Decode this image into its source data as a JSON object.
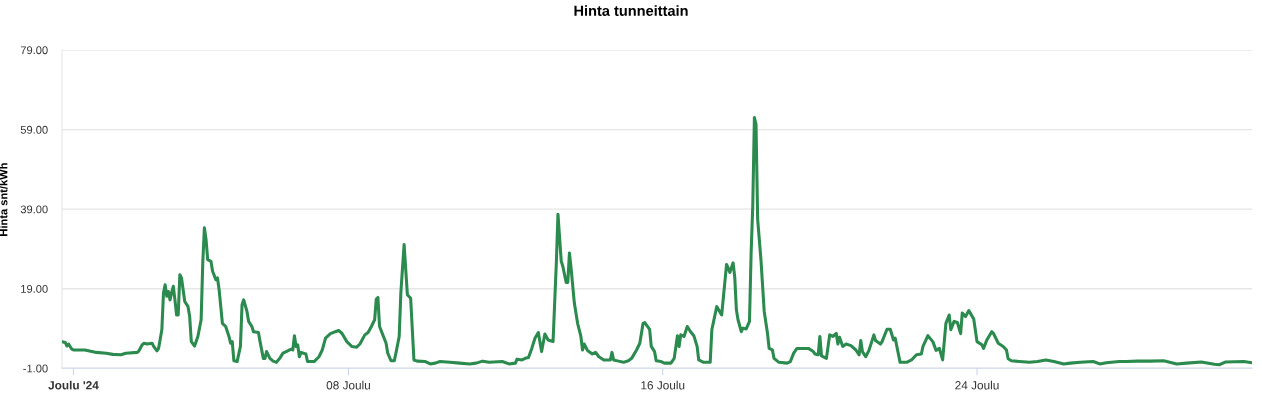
{
  "chart_data": {
    "type": "line",
    "title": "Hinta tunneittain",
    "ylabel": "Hinta snt/kWh",
    "color": "#2b8a4e",
    "line_style": "solid",
    "grid": "y",
    "xlim": [
      "2024-11-30T17:00",
      "2024-12-31T00:00"
    ],
    "xticks": [
      {
        "value": "2024-12-01",
        "label": "Joulu '24"
      },
      {
        "value": "2024-12-08",
        "label": "08 Joulu"
      },
      {
        "value": "2024-12-16",
        "label": "16 Joulu"
      },
      {
        "value": "2024-12-24",
        "label": "24 Joulu"
      }
    ],
    "ylim": [
      -1,
      79
    ],
    "yticks": [
      {
        "value": -1,
        "label": "-1.00"
      },
      {
        "value": 19,
        "label": "19.00"
      },
      {
        "value": 39,
        "label": "39.00"
      },
      {
        "value": 59,
        "label": "59.00"
      },
      {
        "value": 79,
        "label": "79.00"
      }
    ],
    "x": [
      "2024-11-30T17:00",
      "2024-11-30T19:00",
      "2024-11-30T20:00",
      "2024-11-30T21:00",
      "2024-11-30T23:00",
      "2024-12-01T00:00",
      "2024-12-01T07:00",
      "2024-12-01T14:00",
      "2024-12-01T20:00",
      "2024-12-02T00:00",
      "2024-12-02T05:00",
      "2024-12-02T08:00",
      "2024-12-02T15:00",
      "2024-12-02T16:00",
      "2024-12-02T18:00",
      "2024-12-02T19:00",
      "2024-12-02T21:00",
      "2024-12-03T00:00",
      "2024-12-03T01:00",
      "2024-12-03T03:00",
      "2024-12-03T04:00",
      "2024-12-03T06:00",
      "2024-12-03T07:00",
      "2024-12-03T08:00",
      "2024-12-03T09:00",
      "2024-12-03T10:00",
      "2024-12-03T11:00",
      "2024-12-03T12:00",
      "2024-12-03T13:00",
      "2024-12-03T14:00",
      "2024-12-03T15:00",
      "2024-12-03T16:00",
      "2024-12-03T17:00",
      "2024-12-03T18:00",
      "2024-12-03T20:00",
      "2024-12-03T22:00",
      "2024-12-03T23:00",
      "2024-12-04T00:00",
      "2024-12-04T02:00",
      "2024-12-04T04:00",
      "2024-12-04T06:00",
      "2024-12-04T07:00",
      "2024-12-04T08:00",
      "2024-12-04T09:00",
      "2024-12-04T10:00",
      "2024-12-04T12:00",
      "2024-12-04T13:00",
      "2024-12-04T15:00",
      "2024-12-04T16:00",
      "2024-12-04T17:00",
      "2024-12-04T19:00",
      "2024-12-04T21:00",
      "2024-12-04T23:00",
      "2024-12-05T00:00",
      "2024-12-05T01:00",
      "2024-12-05T02:00",
      "2024-12-05T04:00",
      "2024-12-05T06:00",
      "2024-12-05T07:00",
      "2024-12-05T08:00",
      "2024-12-05T10:00",
      "2024-12-05T11:00",
      "2024-12-05T13:00",
      "2024-12-05T14:00",
      "2024-12-05T17:00",
      "2024-12-05T18:00",
      "2024-12-05T20:00",
      "2024-12-05T21:00",
      "2024-12-05T22:00",
      "2024-12-06T00:00",
      "2024-12-06T02:00",
      "2024-12-06T04:00",
      "2024-12-06T06:00",
      "2024-12-06T08:00",
      "2024-12-06T10:00",
      "2024-12-06T13:00",
      "2024-12-06T14:00",
      "2024-12-06T15:00",
      "2024-12-06T16:00",
      "2024-12-06T17:00",
      "2024-12-06T18:00",
      "2024-12-06T19:00",
      "2024-12-06T22:00",
      "2024-12-06T23:00",
      "2024-12-07T03:00",
      "2024-12-07T06:00",
      "2024-12-07T08:00",
      "2024-12-07T10:00",
      "2024-12-07T13:00",
      "2024-12-07T16:00",
      "2024-12-07T18:00",
      "2024-12-07T20:00",
      "2024-12-07T23:00",
      "2024-12-08T02:00",
      "2024-12-08T05:00",
      "2024-12-08T07:00",
      "2024-12-08T10:00",
      "2024-12-08T12:00",
      "2024-12-08T14:00",
      "2024-12-08T16:00",
      "2024-12-08T17:00",
      "2024-12-08T18:00",
      "2024-12-08T19:00",
      "2024-12-08T21:00",
      "2024-12-08T23:00",
      "2024-12-09T00:00",
      "2024-12-09T02:00",
      "2024-12-09T04:00",
      "2024-12-09T05:00",
      "2024-12-09T07:00",
      "2024-12-09T08:00",
      "2024-12-09T10:00",
      "2024-12-09T12:00",
      "2024-12-09T14:00",
      "2024-12-09T16:00",
      "2024-12-09T18:00",
      "2024-12-09T23:00",
      "2024-12-10T02:00",
      "2024-12-10T05:00",
      "2024-12-10T08:00",
      "2024-12-10T14:00",
      "2024-12-10T20:00",
      "2024-12-11T02:00",
      "2024-12-11T06:00",
      "2024-12-11T10:00",
      "2024-12-11T14:00",
      "2024-12-11T22:00",
      "2024-12-12T02:00",
      "2024-12-12T06:00",
      "2024-12-12T07:00",
      "2024-12-12T10:00",
      "2024-12-12T12:00",
      "2024-12-12T14:00",
      "2024-12-12T16:00",
      "2024-12-12T18:00",
      "2024-12-12T20:00",
      "2024-12-12T22:00",
      "2024-12-13T00:00",
      "2024-12-13T02:00",
      "2024-12-13T05:00",
      "2024-12-13T07:00",
      "2024-12-13T08:00",
      "2024-12-13T10:00",
      "2024-12-13T11:00",
      "2024-12-13T13:00",
      "2024-12-13T14:00",
      "2024-12-13T15:00",
      "2024-12-13T16:00",
      "2024-12-13T18:00",
      "2024-12-13T20:00",
      "2024-12-13T22:00",
      "2024-12-13T23:00",
      "2024-12-14T00:00",
      "2024-12-14T02:00",
      "2024-12-14T05:00",
      "2024-12-14T07:00",
      "2024-12-14T09:00",
      "2024-12-14T12:00",
      "2024-12-14T16:00",
      "2024-12-14T17:00",
      "2024-12-14T18:00",
      "2024-12-14T21:00",
      "2024-12-15T00:00",
      "2024-12-15T03:00",
      "2024-12-15T05:00",
      "2024-12-15T08:00",
      "2024-12-15T10:00",
      "2024-12-15T12:00",
      "2024-12-15T13:00",
      "2024-12-15T16:00",
      "2024-12-15T17:00",
      "2024-12-15T19:00",
      "2024-12-15T20:00",
      "2024-12-15T23:00",
      "2024-12-16T01:00",
      "2024-12-16T05:00",
      "2024-12-16T07:00",
      "2024-12-16T09:00",
      "2024-12-16T10:00",
      "2024-12-16T11:00",
      "2024-12-16T13:00",
      "2024-12-16T15:00",
      "2024-12-16T17:00",
      "2024-12-16T19:00",
      "2024-12-16T21:00",
      "2024-12-16T22:00",
      "2024-12-17T01:00",
      "2024-12-17T05:00",
      "2024-12-17T06:00",
      "2024-12-17T09:00",
      "2024-12-17T12:00",
      "2024-12-17T13:00",
      "2024-12-17T15:00",
      "2024-12-17T16:00",
      "2024-12-17T17:00",
      "2024-12-17T19:00",
      "2024-12-17T20:00",
      "2024-12-17T21:00",
      "2024-12-17T22:00",
      "2024-12-18T00:00",
      "2024-12-18T01:00",
      "2024-12-18T03:00",
      "2024-12-18T05:00",
      "2024-12-18T06:00",
      "2024-12-18T07:00",
      "2024-12-18T08:00",
      "2024-12-18T09:00",
      "2024-12-18T10:00",
      "2024-12-18T12:00",
      "2024-12-18T14:00",
      "2024-12-18T16:00",
      "2024-12-18T17:00",
      "2024-12-18T19:00",
      "2024-12-18T20:00",
      "2024-12-18T23:00",
      "2024-12-19T04:00",
      "2024-12-19T06:00",
      "2024-12-19T08:00",
      "2024-12-19T10:00",
      "2024-12-19T14:00",
      "2024-12-19T17:00",
      "2024-12-19T20:00",
      "2024-12-19T21:00",
      "2024-12-19T23:00",
      "2024-12-20T00:00",
      "2024-12-20T01:00",
      "2024-12-20T04:00",
      "2024-12-20T06:00",
      "2024-12-20T08:00",
      "2024-12-20T10:00",
      "2024-12-20T11:00",
      "2024-12-20T12:00",
      "2024-12-20T14:00",
      "2024-12-20T16:00",
      "2024-12-20T19:00",
      "2024-12-20T22:00",
      "2024-12-21T00:00",
      "2024-12-21T01:00",
      "2024-12-21T02:00",
      "2024-12-21T04:00",
      "2024-12-21T06:00",
      "2024-12-21T09:00",
      "2024-12-21T10:00",
      "2024-12-21T13:00",
      "2024-12-21T14:00",
      "2024-12-21T17:00",
      "2024-12-21T19:00",
      "2024-12-21T21:00",
      "2024-12-21T22:00",
      "2024-12-22T01:00",
      "2024-12-22T05:00",
      "2024-12-22T08:00",
      "2024-12-22T11:00",
      "2024-12-22T14:00",
      "2024-12-22T15:00",
      "2024-12-22T18:00",
      "2024-12-22T21:00",
      "2024-12-22T23:00",
      "2024-12-23T01:00",
      "2024-12-23T03:00",
      "2024-12-23T05:00",
      "2024-12-23T07:00",
      "2024-12-23T08:00",
      "2024-12-23T10:00",
      "2024-12-23T12:00",
      "2024-12-23T14:00",
      "2024-12-23T15:00",
      "2024-12-23T17:00",
      "2024-12-23T19:00",
      "2024-12-23T22:00",
      "2024-12-24T00:00",
      "2024-12-24T03:00",
      "2024-12-24T04:00",
      "2024-12-24T06:00",
      "2024-12-24T09:00",
      "2024-12-24T10:00",
      "2024-12-24T13:00",
      "2024-12-24T16:00",
      "2024-12-24T18:00",
      "2024-12-24T19:00",
      "2024-12-24T21:00",
      "2024-12-25T02:00",
      "2024-12-25T08:00",
      "2024-12-25T13:00",
      "2024-12-25T18:00",
      "2024-12-25T23:00",
      "2024-12-26T05:00",
      "2024-12-26T09:00",
      "2024-12-26T15:00",
      "2024-12-26T23:00",
      "2024-12-27T03:00",
      "2024-12-27T07:00",
      "2024-12-27T15:00",
      "2024-12-27T19:00",
      "2024-12-28T02:00",
      "2024-12-28T10:00",
      "2024-12-28T18:00",
      "2024-12-29T02:00",
      "2024-12-29T08:00",
      "2024-12-29T17:00",
      "2024-12-30T01:00",
      "2024-12-30T04:00",
      "2024-12-30T08:00",
      "2024-12-30T19:00",
      "2024-12-31T00:00"
    ],
    "values": [
      5.7,
      5.5,
      4.6,
      5.1,
      3.8,
      3.6,
      3.6,
      3.0,
      2.8,
      2.5,
      2.4,
      2.8,
      3.0,
      3.4,
      4.9,
      5.3,
      5.1,
      5.3,
      4.5,
      3.4,
      4.0,
      8.7,
      17.9,
      20.0,
      17.1,
      18.3,
      16.2,
      18.1,
      19.6,
      16.2,
      12.4,
      12.4,
      22.5,
      21.7,
      15.8,
      14.5,
      12.0,
      5.7,
      4.6,
      7.0,
      11.2,
      25.5,
      34.3,
      31.4,
      26.3,
      25.9,
      23.4,
      21.3,
      21.7,
      18.7,
      10.3,
      9.5,
      7.0,
      5.3,
      5.7,
      0.9,
      0.7,
      4.5,
      15.0,
      16.2,
      13.3,
      10.8,
      9.5,
      8.2,
      8.0,
      5.7,
      1.5,
      1.5,
      3.2,
      1.5,
      0.8,
      0.5,
      1.5,
      2.8,
      3.2,
      3.8,
      3.6,
      7.2,
      4.5,
      4.9,
      1.9,
      3.0,
      2.6,
      0.7,
      0.7,
      1.9,
      3.6,
      6.6,
      7.7,
      8.2,
      8.5,
      7.8,
      5.7,
      4.5,
      4.3,
      5.1,
      7.4,
      8.0,
      9.5,
      11.2,
      16.4,
      16.8,
      9.5,
      7.4,
      5.3,
      2.8,
      0.9,
      0.9,
      2.8,
      7.0,
      17.9,
      30.1,
      17.5,
      16.6,
      1.1,
      0.8,
      0.7,
      0.1,
      0.3,
      0.7,
      0.5,
      0.3,
      0.1,
      0.3,
      0.8,
      0.5,
      0.7,
      0.1,
      0.3,
      1.3,
      1.1,
      1.5,
      1.7,
      4.0,
      6.6,
      8.0,
      3.2,
      7.6,
      6.1,
      5.7,
      25.5,
      37.7,
      25.9,
      24.6,
      20.6,
      20.6,
      28.0,
      24.2,
      15.4,
      10.3,
      7.0,
      3.6,
      5.1,
      3.5,
      2.6,
      3.0,
      1.9,
      1.1,
      1.1,
      3.0,
      1.1,
      0.8,
      0.5,
      0.9,
      1.5,
      3.6,
      5.3,
      10.3,
      10.5,
      8.8,
      4.5,
      3.2,
      0.9,
      0.7,
      0.3,
      0.3,
      1.5,
      7.2,
      4.5,
      7.4,
      7.0,
      9.5,
      8.2,
      7.2,
      4.5,
      1.1,
      0.5,
      0.5,
      8.7,
      14.5,
      12.4,
      16.6,
      25.1,
      24.2,
      23.1,
      25.5,
      21.9,
      13.7,
      11.2,
      8.2,
      9.1,
      8.9,
      10.8,
      28.0,
      39.8,
      62.0,
      60.3,
      36.4,
      26.3,
      13.3,
      7.8,
      4.0,
      3.6,
      1.5,
      0.5,
      0.3,
      0.7,
      2.8,
      4.0,
      4.0,
      4.0,
      3.2,
      2.6,
      2.4,
      7.0,
      2.1,
      1.5,
      7.4,
      7.0,
      7.8,
      5.1,
      6.8,
      4.5,
      5.1,
      4.7,
      3.6,
      2.4,
      6.0,
      3.2,
      1.9,
      3.5,
      7.4,
      6.0,
      5.1,
      5.7,
      8.8,
      8.8,
      6.1,
      6.6,
      0.5,
      0.5,
      1.1,
      2.4,
      2.6,
      4.5,
      7.2,
      5.7,
      3.5,
      4.0,
      1.1,
      10.3,
      12.4,
      8.7,
      10.8,
      10.5,
      7.7,
      12.9,
      12.0,
      13.5,
      11.4,
      5.7,
      4.9,
      4.0,
      6.1,
      8.2,
      7.8,
      5.3,
      4.5,
      3.6,
      1.4,
      0.9,
      0.7,
      0.5,
      0.7,
      1.1,
      0.7,
      0.1,
      0.3,
      0.5,
      0.7,
      0.1,
      0.4,
      0.7,
      0.7,
      0.8,
      0.8,
      0.9,
      0.1,
      0.3,
      0.6,
      0.0,
      -0.1,
      0.6,
      0.7,
      0.4
    ]
  }
}
